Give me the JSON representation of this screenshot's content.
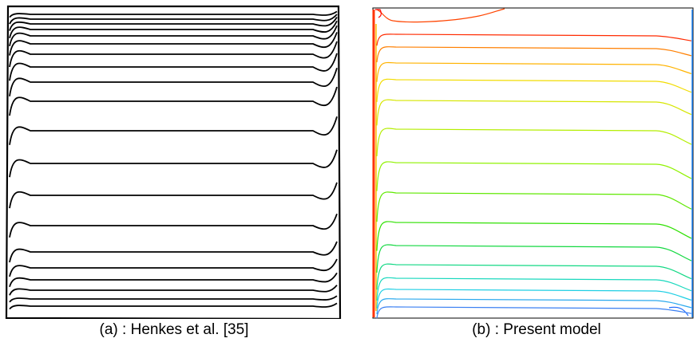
{
  "panels": [
    {
      "id": "a",
      "caption": "(a) : Henkes et al. [35]",
      "style": "monochrome",
      "line_color": "#000000",
      "contour_count": 20
    },
    {
      "id": "b",
      "caption": "(b) : Present model",
      "style": "colored",
      "contour_colors": [
        "#ff2a00",
        "#ff7f00",
        "#ffb300",
        "#f2dc00",
        "#d6e600",
        "#b4ee00",
        "#8ff200",
        "#5fe800",
        "#2ee000",
        "#13d840",
        "#12d884",
        "#18d8bd",
        "#1ecfe4",
        "#2ba9ee",
        "#3a7ff2"
      ],
      "contour_count": 15
    }
  ]
}
